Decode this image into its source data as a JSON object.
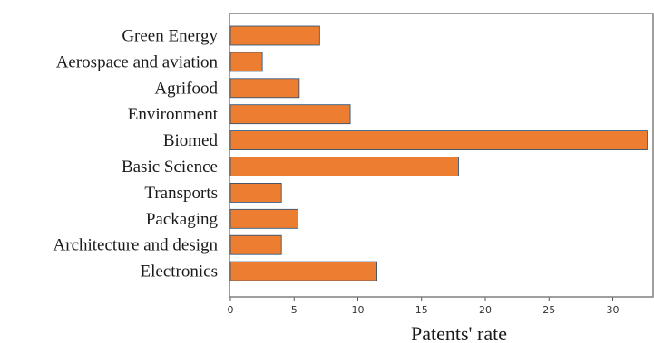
{
  "chart_data": {
    "type": "bar",
    "orientation": "horizontal",
    "categories": [
      "Green Energy",
      "Aerospace and aviation",
      "Agrifood",
      "Environment",
      "Biomed",
      "Basic Science",
      "Transports",
      "Packaging",
      "Architecture and design",
      "Electronics"
    ],
    "values": [
      7.0,
      2.5,
      5.4,
      9.4,
      32.7,
      17.9,
      4.0,
      5.3,
      4.0,
      11.5
    ],
    "xlabel": "Patents' rate",
    "ylabel": "",
    "xlim": [
      0,
      33
    ],
    "xticks": [
      "0",
      "5",
      "10",
      "15",
      "20",
      "25",
      "30"
    ],
    "grid": false,
    "bar_color": "#ED7D31",
    "bar_edge_color": "#1f4e79"
  }
}
